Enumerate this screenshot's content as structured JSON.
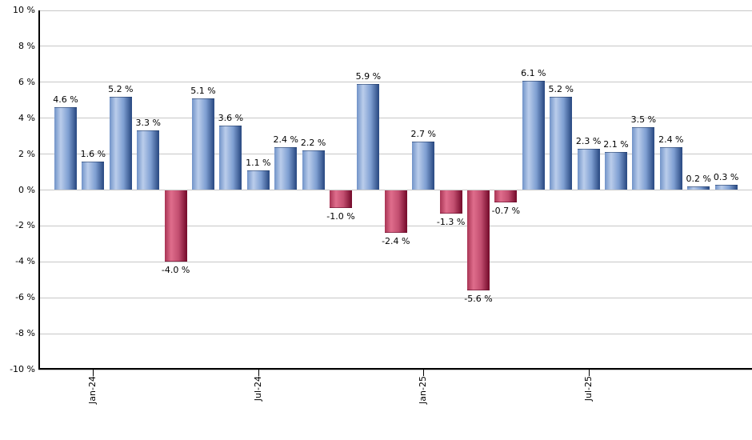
{
  "chart_data": {
    "type": "bar",
    "title": "",
    "xlabel": "",
    "ylabel": "",
    "ylim": [
      -10,
      10
    ],
    "ytick_step": 2,
    "grid": true,
    "legend": false,
    "y_tick_labels": [
      "10 %",
      "8 %",
      "6 %",
      "4 %",
      "2 %",
      "0 %",
      "-2 %",
      "-4 %",
      "-6 %",
      "-8 %",
      "-10 %"
    ],
    "values": [
      4.6,
      1.6,
      5.2,
      3.3,
      -4.0,
      5.1,
      3.6,
      1.1,
      2.4,
      2.2,
      -1.0,
      5.9,
      -2.4,
      2.7,
      -1.3,
      -5.6,
      -0.7,
      6.1,
      5.2,
      2.3,
      2.1,
      3.5,
      2.4,
      0.2,
      0.3
    ],
    "bar_labels": [
      "4.6 %",
      "1.6 %",
      "5.2 %",
      "3.3 %",
      "-4.0 %",
      "5.1 %",
      "3.6 %",
      "1.1 %",
      "2.4 %",
      "2.2 %",
      "-1.0 %",
      "5.9 %",
      "-2.4 %",
      "2.7 %",
      "-1.3 %",
      "-5.6 %",
      "-0.7 %",
      "6.1 %",
      "5.2 %",
      "2.3 %",
      "2.1 %",
      "3.5 %",
      "2.4 %",
      "0.2 %",
      "0.3 %"
    ],
    "x_ticks": [
      {
        "label": "Jan-24",
        "bar_index": 1
      },
      {
        "label": "Jul-24",
        "bar_index": 7
      },
      {
        "label": "Jan-25",
        "bar_index": 13
      },
      {
        "label": "Jul-25",
        "bar_index": 19
      }
    ],
    "colors": {
      "background": "#ffffff",
      "gridline": "#c8c8c8",
      "axis": "#000000",
      "label_text": "#000000",
      "positive_gradient": [
        "#7193c8",
        "#bacdeb",
        "#7f9fd2",
        "#2f4f87"
      ],
      "negative_gradient": [
        "#a83454",
        "#df6d8c",
        "#c24e6f",
        "#7a0f30"
      ]
    }
  }
}
